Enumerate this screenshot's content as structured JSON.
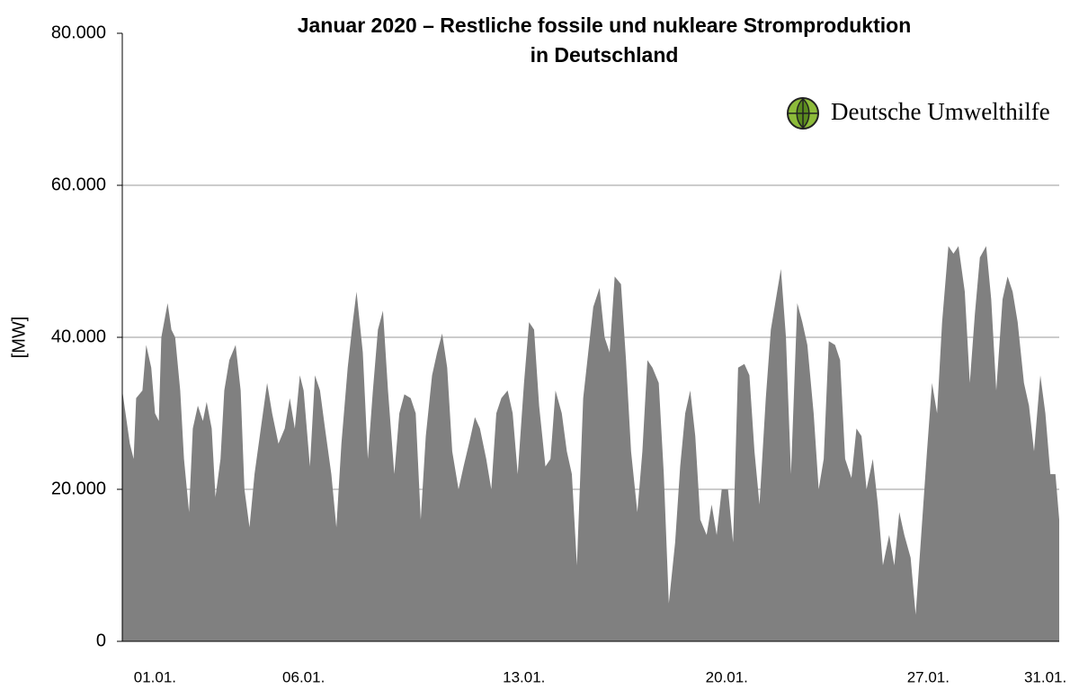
{
  "chart_data": {
    "type": "area",
    "title": [
      "Januar 2020 – Restliche fossile und nukleare Stromproduktion",
      "in Deutschland"
    ],
    "ylabel": "[MW]",
    "logo": "Deutsche Umwelthilfe",
    "color": "#808080",
    "grid": true,
    "xlim": [
      0,
      744
    ],
    "xticks": [
      {
        "value": 26,
        "label": "01.01."
      },
      {
        "value": 144,
        "label": "06.01."
      },
      {
        "value": 319,
        "label": "13.01."
      },
      {
        "value": 480,
        "label": "20.01."
      },
      {
        "value": 640,
        "label": "27.01."
      },
      {
        "value": 733,
        "label": "31.01."
      }
    ],
    "ylim": [
      0,
      80000
    ],
    "yticks": [
      {
        "value": 0,
        "label": "0"
      },
      {
        "value": 20000,
        "label": "20.000"
      },
      {
        "value": 40000,
        "label": "40.000"
      },
      {
        "value": 60000,
        "label": "60.000"
      },
      {
        "value": 80000,
        "label": "80.000"
      }
    ],
    "x": [
      0,
      6,
      9,
      11,
      16,
      19,
      23,
      26,
      29,
      31,
      36,
      39,
      42,
      46,
      49,
      53,
      56,
      60,
      64,
      67,
      71,
      74,
      78,
      81,
      85,
      90,
      94,
      97,
      101,
      105,
      110,
      115,
      119,
      124,
      129,
      133,
      137,
      141,
      144,
      149,
      153,
      157,
      161,
      166,
      170,
      174,
      179,
      183,
      186,
      191,
      195,
      199,
      203,
      207,
      211,
      216,
      220,
      224,
      229,
      233,
      237,
      241,
      246,
      250,
      254,
      258,
      262,
      267,
      271,
      276,
      280,
      284,
      289,
      293,
      297,
      301,
      306,
      310,
      314,
      319,
      323,
      327,
      331,
      336,
      340,
      344,
      349,
      353,
      357,
      361,
      366,
      370,
      374,
      379,
      383,
      387,
      391,
      396,
      400,
      404,
      409,
      413,
      417,
      421,
      426,
      430,
      434,
      439,
      443,
      447,
      451,
      455,
      459,
      464,
      468,
      472,
      476,
      481,
      485,
      489,
      494,
      498,
      502,
      506,
      511,
      515,
      519,
      523,
      527,
      531,
      536,
      540,
      544,
      549,
      553,
      557,
      561,
      566,
      570,
      574,
      579,
      583,
      587,
      591,
      596,
      600,
      604,
      609,
      613,
      617,
      621,
      626,
      630,
      634,
      639,
      643,
      647,
      651,
      656,
      660,
      664,
      669,
      673,
      677,
      681,
      686,
      690,
      694,
      699,
      703,
      707,
      711,
      716,
      720,
      724,
      729,
      733,
      737,
      741,
      744
    ],
    "y": [
      33000,
      26000,
      24000,
      32000,
      33000,
      39000,
      36000,
      30000,
      29000,
      40000,
      44500,
      41000,
      40000,
      33000,
      24000,
      17000,
      28000,
      31000,
      29000,
      31500,
      28000,
      19000,
      24000,
      33000,
      37000,
      39000,
      33000,
      20000,
      15000,
      22000,
      28000,
      34000,
      30000,
      26000,
      28000,
      32000,
      28000,
      35000,
      33000,
      23000,
      35000,
      33000,
      28000,
      22000,
      15000,
      26000,
      36000,
      42000,
      46000,
      38000,
      24000,
      33000,
      41000,
      43500,
      33000,
      22000,
      30000,
      32500,
      32000,
      30000,
      16000,
      27000,
      35000,
      38000,
      40500,
      36000,
      25000,
      20000,
      23000,
      26500,
      29500,
      28000,
      24000,
      20000,
      30000,
      32000,
      33000,
      30000,
      22000,
      34000,
      42000,
      41000,
      31000,
      23000,
      24000,
      33000,
      30000,
      25000,
      22000,
      10000,
      32000,
      38000,
      44000,
      46500,
      40000,
      38000,
      48000,
      47000,
      37000,
      25000,
      17000,
      25000,
      37000,
      36000,
      34000,
      22000,
      5000,
      13000,
      23000,
      30000,
      33000,
      27000,
      16000,
      14000,
      18000,
      14000,
      20000,
      20000,
      13000,
      36000,
      36500,
      35000,
      25000,
      18000,
      32000,
      41000,
      45000,
      49000,
      40000,
      22000,
      44500,
      42000,
      39000,
      30000,
      20000,
      24000,
      39500,
      39000,
      37000,
      24000,
      21500,
      28000,
      27000,
      20000,
      24000,
      18000,
      10000,
      14000,
      10000,
      17000,
      14000,
      11000,
      3500,
      13000,
      25000,
      34000,
      30000,
      42000,
      52000,
      51000,
      52000,
      46000,
      34000,
      43000,
      50500,
      52000,
      45000,
      33000,
      45000,
      48000,
      46000,
      42000,
      34000,
      31000,
      25000,
      35000,
      30000,
      22000,
      22000,
      16000
    ]
  }
}
